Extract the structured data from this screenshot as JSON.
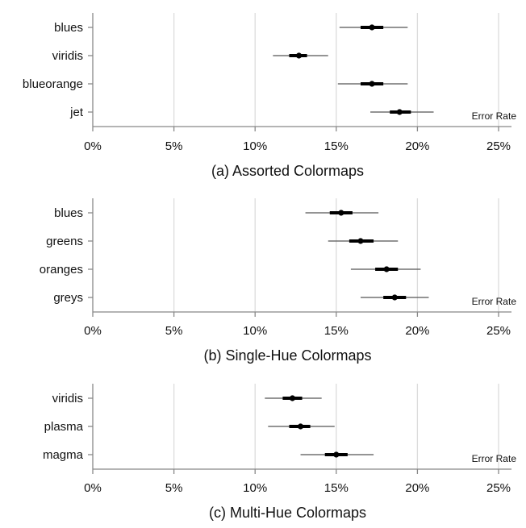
{
  "chart_data": [
    {
      "type": "interval",
      "caption": "(a) Assorted Colormaps",
      "xlabel": "Error Rate",
      "xlim": [
        0,
        25
      ],
      "xticks": [
        0,
        5,
        10,
        15,
        20,
        25
      ],
      "xtick_labels": [
        "0%",
        "5%",
        "10%",
        "15%",
        "20%",
        "25%"
      ],
      "grid": true,
      "categories": [
        "blues",
        "viridis",
        "blueorange",
        "jet"
      ],
      "points": [
        {
          "label": "blues",
          "mean": 17.2,
          "ci_low": 16.5,
          "ci_high": 17.9,
          "range_low": 15.2,
          "range_high": 19.4
        },
        {
          "label": "viridis",
          "mean": 12.7,
          "ci_low": 12.1,
          "ci_high": 13.2,
          "range_low": 11.1,
          "range_high": 14.5
        },
        {
          "label": "blueorange",
          "mean": 17.2,
          "ci_low": 16.5,
          "ci_high": 17.9,
          "range_low": 15.1,
          "range_high": 19.4
        },
        {
          "label": "jet",
          "mean": 18.9,
          "ci_low": 18.3,
          "ci_high": 19.6,
          "range_low": 17.1,
          "range_high": 21.0
        }
      ]
    },
    {
      "type": "interval",
      "caption": "(b) Single-Hue Colormaps",
      "xlabel": "Error Rate",
      "xlim": [
        0,
        25
      ],
      "xticks": [
        0,
        5,
        10,
        15,
        20,
        25
      ],
      "xtick_labels": [
        "0%",
        "5%",
        "10%",
        "15%",
        "20%",
        "25%"
      ],
      "grid": true,
      "categories": [
        "blues",
        "greens",
        "oranges",
        "greys"
      ],
      "points": [
        {
          "label": "blues",
          "mean": 15.3,
          "ci_low": 14.6,
          "ci_high": 16.0,
          "range_low": 13.1,
          "range_high": 17.6
        },
        {
          "label": "greens",
          "mean": 16.5,
          "ci_low": 15.8,
          "ci_high": 17.3,
          "range_low": 14.5,
          "range_high": 18.8
        },
        {
          "label": "oranges",
          "mean": 18.1,
          "ci_low": 17.4,
          "ci_high": 18.8,
          "range_low": 15.9,
          "range_high": 20.2
        },
        {
          "label": "greys",
          "mean": 18.6,
          "ci_low": 17.9,
          "ci_high": 19.3,
          "range_low": 16.5,
          "range_high": 20.7
        }
      ]
    },
    {
      "type": "interval",
      "caption": "(c) Multi-Hue Colormaps",
      "xlabel": "Error Rate",
      "xlim": [
        0,
        25
      ],
      "xticks": [
        0,
        5,
        10,
        15,
        20,
        25
      ],
      "xtick_labels": [
        "0%",
        "5%",
        "10%",
        "15%",
        "20%",
        "25%"
      ],
      "grid": true,
      "categories": [
        "viridis",
        "plasma",
        "magma"
      ],
      "points": [
        {
          "label": "viridis",
          "mean": 12.3,
          "ci_low": 11.7,
          "ci_high": 12.9,
          "range_low": 10.6,
          "range_high": 14.1
        },
        {
          "label": "plasma",
          "mean": 12.8,
          "ci_low": 12.1,
          "ci_high": 13.4,
          "range_low": 10.8,
          "range_high": 14.9
        },
        {
          "label": "magma",
          "mean": 15.0,
          "ci_low": 14.3,
          "ci_high": 15.7,
          "range_low": 12.8,
          "range_high": 17.3
        }
      ]
    }
  ]
}
